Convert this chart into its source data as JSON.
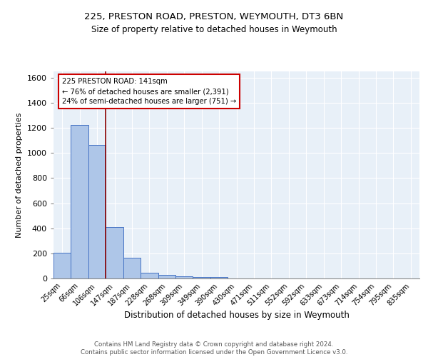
{
  "title1": "225, PRESTON ROAD, PRESTON, WEYMOUTH, DT3 6BN",
  "title2": "Size of property relative to detached houses in Weymouth",
  "xlabel": "Distribution of detached houses by size in Weymouth",
  "ylabel": "Number of detached properties",
  "categories": [
    "25sqm",
    "66sqm",
    "106sqm",
    "147sqm",
    "187sqm",
    "228sqm",
    "268sqm",
    "309sqm",
    "349sqm",
    "390sqm",
    "430sqm",
    "471sqm",
    "511sqm",
    "552sqm",
    "592sqm",
    "633sqm",
    "673sqm",
    "714sqm",
    "754sqm",
    "795sqm",
    "835sqm"
  ],
  "values": [
    205,
    1225,
    1065,
    410,
    163,
    48,
    27,
    18,
    14,
    14,
    0,
    0,
    0,
    0,
    0,
    0,
    0,
    0,
    0,
    0,
    0
  ],
  "bar_color": "#aec6e8",
  "bar_edge_color": "#4472c4",
  "background_color": "#e8f0f8",
  "grid_color": "#ffffff",
  "vline_color": "#8B0000",
  "annotation_text": "225 PRESTON ROAD: 141sqm\n← 76% of detached houses are smaller (2,391)\n24% of semi-detached houses are larger (751) →",
  "annotation_box_color": "#ffffff",
  "annotation_box_edge": "#cc0000",
  "ylim": [
    0,
    1650
  ],
  "yticks": [
    0,
    200,
    400,
    600,
    800,
    1000,
    1200,
    1400,
    1600
  ],
  "footer": "Contains HM Land Registry data © Crown copyright and database right 2024.\nContains public sector information licensed under the Open Government Licence v3.0."
}
